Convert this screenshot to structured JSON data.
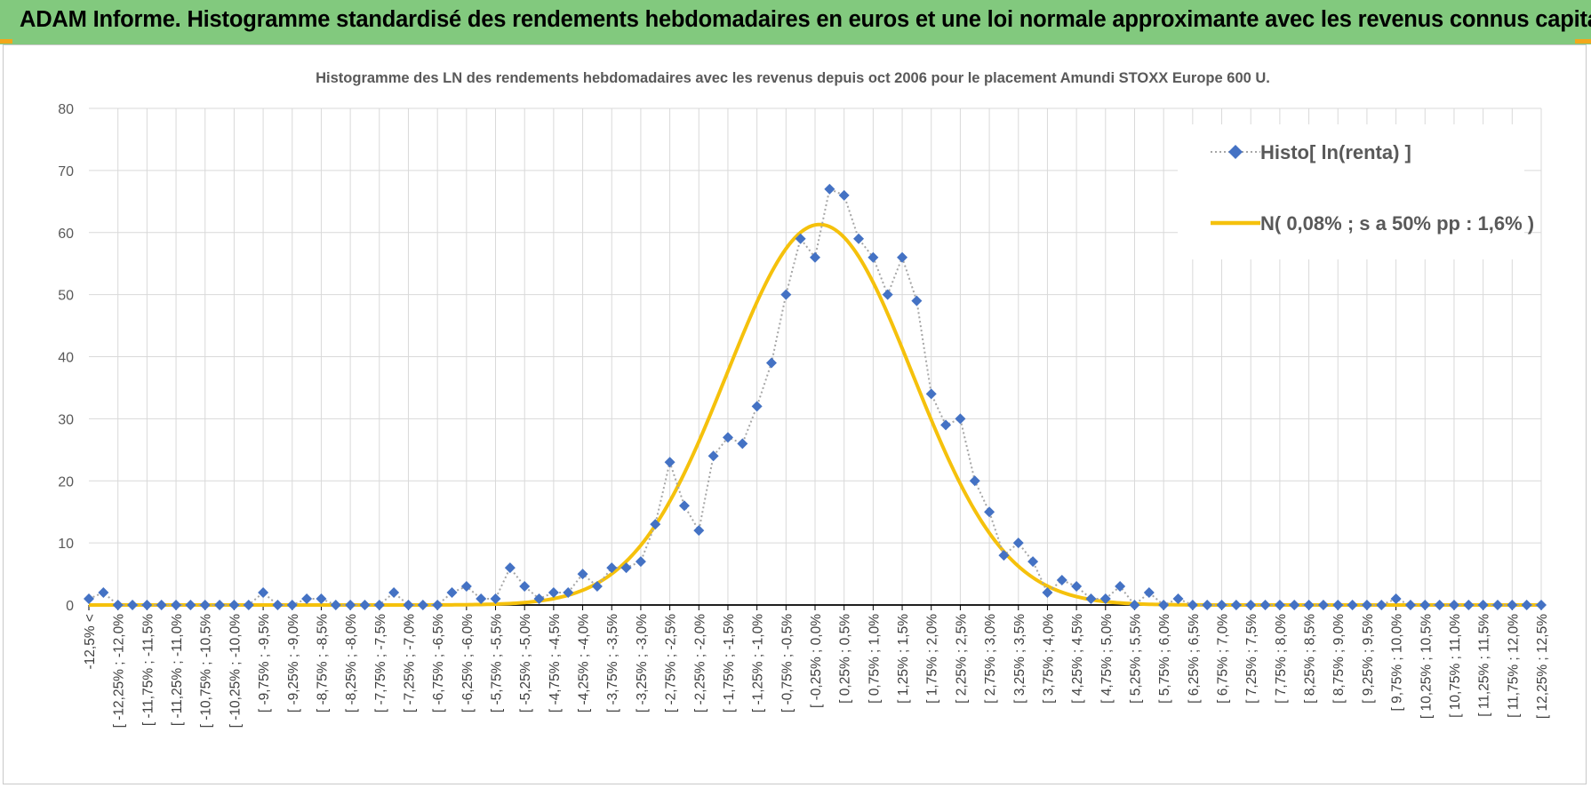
{
  "banner": {
    "title": "ADAM Informe. Histogramme standardisé des rendements hebdomadaires en euros et une loi normale approximante avec les revenus connus capitalisés"
  },
  "colors": {
    "banner_bg": "#82c97e",
    "accent_corner": "#f2a71b",
    "histogram_marker": "#4472c4",
    "histogram_line": "#a6a6a6",
    "normal_curve": "#f5c10c",
    "gridline": "#d9d9d9",
    "axis_line": "#000000"
  },
  "chart_data": {
    "type": "line",
    "title": "Histogramme des LN des rendements hebdomadaires avec les revenus depuis oct 2006 pour le placement Amundi STOXX Europe 600 U.",
    "xlabel": "",
    "ylabel": "",
    "ylim": [
      0,
      80
    ],
    "yticks": [
      0,
      10,
      20,
      30,
      40,
      50,
      60,
      70,
      80
    ],
    "grid": true,
    "legend_position": "top-right",
    "categories": [
      "-12,5% <",
      "[ -12,25% ; -12,0%",
      "[ -11,75% ; -11,5%",
      "[ -11,25% ; -11,0%",
      "[ -10,75% ; -10,5%",
      "[ -10,25% ; -10,0%",
      "[ -9,75% ; -9,5%",
      "[ -9,25% ; -9,0%",
      "[ -8,75% ; -8,5%",
      "[ -8,25% ; -8,0%",
      "[ -7,75% ; -7,5%",
      "[ -7,25% ; -7,0%",
      "[ -6,75% ; -6,5%",
      "[ -6,25% ; -6,0%",
      "[ -5,75% ; -5,5%",
      "[ -5,25% ; -5,0%",
      "[ -4,75% ; -4,5%",
      "[ -4,25% ; -4,0%",
      "[ -3,75% ; -3,5%",
      "[ -3,25% ; -3,0%",
      "[ -2,75% ; -2,5%",
      "[ -2,25% ; -2,0%",
      "[ -1,75% ; -1,5%",
      "[ -1,25% ; -1,0%",
      "[ -0,75% ; -0,5%",
      "[ -0,25% ; 0,0%",
      "[ 0,25% ; 0,5%",
      "[ 0,75% ; 1,0%",
      "[ 1,25% ; 1,5%",
      "[ 1,75% ; 2,0%",
      "[ 2,25% ; 2,5%",
      "[ 2,75% ; 3,0%",
      "[ 3,25% ; 3,5%",
      "[ 3,75% ; 4,0%",
      "[ 4,25% ; 4,5%",
      "[ 4,75% ; 5,0%",
      "[ 5,25% ; 5,5%",
      "[ 5,75% ; 6,0%",
      "[ 6,25% ; 6,5%",
      "[ 6,75% ; 7,0%",
      "[ 7,25% ; 7,5%",
      "[ 7,75% ; 8,0%",
      "[ 8,25% ; 8,5%",
      "[ 8,75% ; 9,0%",
      "[ 9,25% ; 9,5%",
      "[ 9,75% ; 10,0%",
      "[ 10,25% ; 10,5%",
      "[ 10,75% ; 11,0%",
      "[ 11,25% ; 11,5%",
      "[ 11,75% ; 12,0%",
      "[ 12,25% ; 12,5%"
    ],
    "series": [
      {
        "name": "Histo[ ln(renta) ]",
        "style": "dotted-line-diamond-markers",
        "x": [
          -12.5,
          -12.25,
          -12.0,
          -11.75,
          -11.5,
          -11.25,
          -11.0,
          -10.75,
          -10.5,
          -10.25,
          -10.0,
          -9.75,
          -9.5,
          -9.25,
          -9.0,
          -8.75,
          -8.5,
          -8.25,
          -8.0,
          -7.75,
          -7.5,
          -7.25,
          -7.0,
          -6.75,
          -6.5,
          -6.25,
          -6.0,
          -5.75,
          -5.5,
          -5.25,
          -5.0,
          -4.75,
          -4.5,
          -4.25,
          -4.0,
          -3.75,
          -3.5,
          -3.25,
          -3.0,
          -2.75,
          -2.5,
          -2.25,
          -2.0,
          -1.75,
          -1.5,
          -1.25,
          -1.0,
          -0.75,
          -0.5,
          -0.25,
          0.0,
          0.25,
          0.5,
          0.75,
          1.0,
          1.25,
          1.5,
          1.75,
          2.0,
          2.25,
          2.5,
          2.75,
          3.0,
          3.25,
          3.5,
          3.75,
          4.0,
          4.25,
          4.5,
          4.75,
          5.0,
          5.25,
          5.5,
          5.75,
          6.0,
          6.25,
          6.5,
          6.75,
          7.0,
          7.25,
          7.5,
          7.75,
          8.0,
          8.25,
          8.5,
          8.75,
          9.0,
          9.25,
          9.5,
          9.75,
          10.0,
          10.25,
          10.5,
          10.75,
          11.0,
          11.25,
          11.5,
          11.75,
          12.0,
          12.25,
          12.5
        ],
        "values": [
          1,
          2,
          0,
          0,
          0,
          0,
          0,
          0,
          0,
          0,
          0,
          0,
          2,
          0,
          0,
          1,
          1,
          0,
          0,
          0,
          0,
          2,
          0,
          0,
          0,
          2,
          3,
          1,
          1,
          6,
          3,
          1,
          2,
          2,
          5,
          3,
          6,
          6,
          7,
          13,
          23,
          16,
          12,
          24,
          27,
          26,
          32,
          39,
          50,
          59,
          56,
          67,
          66,
          59,
          56,
          50,
          56,
          49,
          34,
          29,
          30,
          20,
          15,
          8,
          10,
          7,
          2,
          4,
          3,
          1,
          1,
          3,
          0,
          2,
          0,
          1,
          0,
          0,
          0,
          0,
          0,
          0,
          0,
          0,
          0,
          0,
          0,
          0,
          0,
          0,
          1,
          0,
          0,
          0,
          0,
          0,
          0,
          0,
          0,
          0,
          0
        ]
      },
      {
        "name": "N( 0,08% ; s a 50% pp : 1,6% )",
        "style": "smooth-line",
        "mean": 0.08,
        "std": 1.6,
        "x_range": [
          -12.5,
          12.5
        ],
        "peak": 61.3
      }
    ]
  }
}
